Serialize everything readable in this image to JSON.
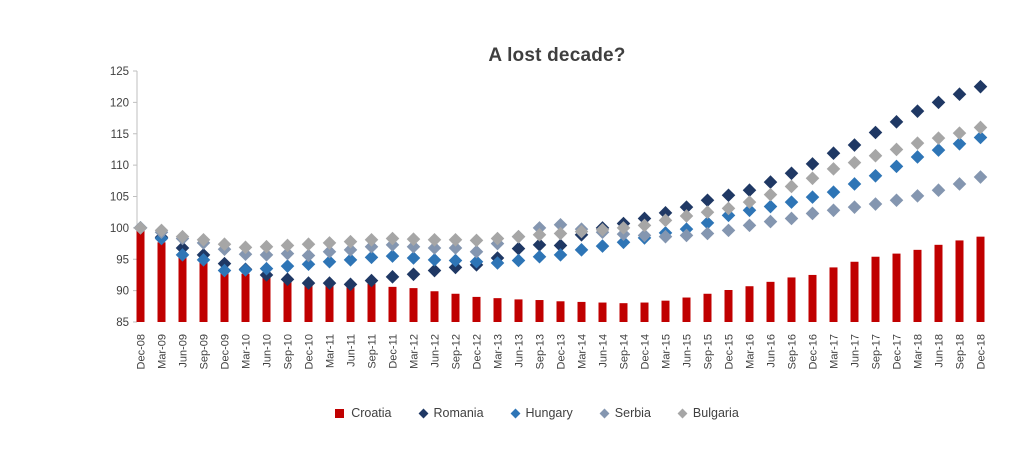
{
  "title": "A lost decade?",
  "colors": {
    "background": "#ffffff",
    "title_text": "#3f3f3f",
    "axis_label_text": "#404040",
    "axis_line": "#bfbfbf"
  },
  "legend": {
    "items": [
      {
        "label": "Croatia",
        "marker": "square",
        "color": "#c00000"
      },
      {
        "label": "Romania",
        "marker": "diamond",
        "color": "#1f3864"
      },
      {
        "label": "Hungary",
        "marker": "diamond",
        "color": "#2e75b6"
      },
      {
        "label": "Serbia",
        "marker": "diamond",
        "color": "#8496b0"
      },
      {
        "label": "Bulgaria",
        "marker": "diamond",
        "color": "#a6a6a6"
      }
    ]
  },
  "chart_data": {
    "type": "bar",
    "subtype": "combo bar + diamond scatter, index Dec-08 = 100",
    "title": "A lost decade?",
    "xlabel": "",
    "ylabel": "",
    "ylim": [
      85,
      125
    ],
    "ytick_step": 5,
    "grid": false,
    "legend_position": "bottom",
    "categories": [
      "Dec-08",
      "Mar-09",
      "Jun-09",
      "Sep-09",
      "Dec-09",
      "Mar-10",
      "Jun-10",
      "Sep-10",
      "Dec-10",
      "Mar-11",
      "Jun-11",
      "Sep-11",
      "Dec-11",
      "Mar-12",
      "Jun-12",
      "Sep-12",
      "Dec-12",
      "Mar-13",
      "Jun-13",
      "Sep-13",
      "Dec-13",
      "Mar-14",
      "Jun-14",
      "Sep-14",
      "Dec-14",
      "Mar-15",
      "Jun-15",
      "Sep-15",
      "Dec-15",
      "Mar-16",
      "Jun-16",
      "Sep-16",
      "Dec-16",
      "Mar-17",
      "Jun-17",
      "Sep-17",
      "Dec-17",
      "Mar-18",
      "Jun-18",
      "Sep-18",
      "Dec-18"
    ],
    "series": [
      {
        "name": "Croatia",
        "render": "bar",
        "color": "#c00000",
        "values": [
          100,
          97.7,
          95.9,
          94.7,
          93.5,
          92.7,
          92.2,
          91.7,
          91.3,
          91.0,
          90.8,
          91.1,
          90.6,
          90.4,
          89.9,
          89.5,
          89.0,
          88.8,
          88.6,
          88.5,
          88.3,
          88.2,
          88.1,
          88.0,
          88.1,
          88.4,
          88.9,
          89.5,
          90.1,
          90.7,
          91.4,
          92.1,
          92.5,
          93.7,
          94.6,
          95.4,
          95.9,
          96.5,
          97.3,
          98.0,
          98.6
        ]
      },
      {
        "name": "Romania",
        "render": "diamond",
        "color": "#1f3864",
        "values": [
          100,
          98.5,
          96.8,
          95.7,
          94.3,
          93.4,
          92.5,
          91.8,
          91.2,
          91.2,
          91.0,
          91.6,
          92.2,
          92.6,
          93.2,
          93.7,
          94.1,
          95.2,
          96.7,
          97.3,
          97.2,
          98.9,
          100.0,
          100.7,
          101.5,
          102.4,
          103.3,
          104.4,
          105.2,
          106.0,
          107.3,
          108.7,
          110.2,
          111.9,
          113.2,
          115.2,
          116.9,
          118.6,
          120.0,
          121.3,
          122.5
        ]
      },
      {
        "name": "Hungary",
        "render": "diamond",
        "color": "#2e75b6",
        "values": [
          100,
          98.3,
          95.7,
          94.9,
          93.2,
          93.3,
          93.5,
          93.9,
          94.2,
          94.6,
          94.9,
          95.3,
          95.5,
          95.2,
          94.9,
          94.8,
          94.6,
          94.4,
          94.8,
          95.4,
          95.7,
          96.5,
          97.1,
          97.7,
          98.4,
          99.2,
          99.8,
          100.8,
          102.0,
          102.8,
          103.4,
          104.1,
          104.9,
          105.7,
          107.0,
          108.3,
          109.8,
          111.3,
          112.4,
          113.4,
          114.4
        ]
      },
      {
        "name": "Serbia",
        "render": "diamond",
        "color": "#8496b0",
        "values": [
          100,
          99.3,
          98.3,
          97.6,
          96.6,
          95.8,
          95.7,
          95.9,
          95.6,
          96.2,
          96.5,
          97.0,
          97.3,
          97.0,
          96.8,
          96.8,
          96.2,
          97.5,
          98.6,
          100.0,
          100.5,
          99.8,
          99.3,
          99.0,
          98.8,
          98.6,
          98.8,
          99.1,
          99.6,
          100.4,
          101.0,
          101.5,
          102.3,
          102.8,
          103.3,
          103.8,
          104.4,
          105.1,
          106.0,
          107.0,
          108.1
        ]
      },
      {
        "name": "Bulgaria",
        "render": "diamond",
        "color": "#a6a6a6",
        "values": [
          100,
          99.6,
          98.6,
          98.1,
          97.4,
          96.9,
          97.0,
          97.2,
          97.4,
          97.6,
          97.8,
          98.1,
          98.3,
          98.2,
          98.1,
          98.1,
          98.0,
          98.3,
          98.6,
          98.9,
          99.1,
          99.4,
          99.7,
          100.0,
          100.4,
          101.2,
          101.9,
          102.5,
          103.1,
          104.1,
          105.3,
          106.6,
          107.9,
          109.4,
          110.4,
          111.5,
          112.5,
          113.5,
          114.3,
          115.1,
          116.0
        ]
      }
    ]
  }
}
